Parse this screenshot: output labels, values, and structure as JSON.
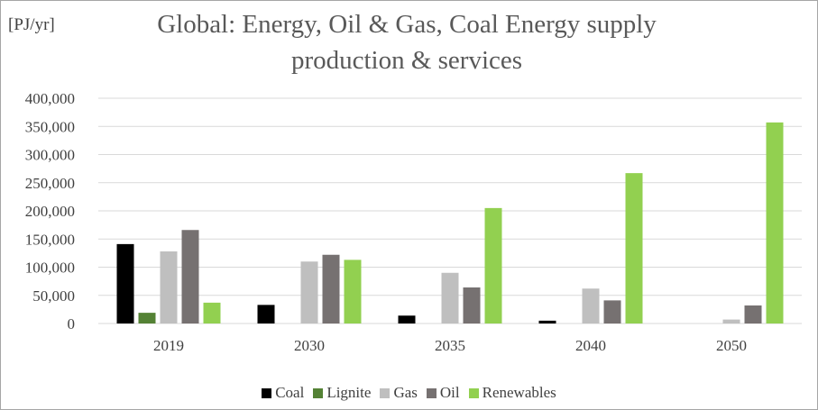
{
  "chart_data": {
    "type": "bar",
    "title": "Global: Energy, Oil & Gas, Coal   Energy supply\nproduction & services",
    "unit_label": "[PJ/yr]",
    "categories": [
      "2019",
      "2030",
      "2035",
      "2040",
      "2050"
    ],
    "ylim": [
      0,
      400000
    ],
    "yticks": [
      "0",
      "50,000",
      "100,000",
      "150,000",
      "200,000",
      "250,000",
      "300,000",
      "350,000",
      "400,000"
    ],
    "ytick_values": [
      0,
      50000,
      100000,
      150000,
      200000,
      250000,
      300000,
      350000,
      400000
    ],
    "grid": true,
    "legend_position": "bottom",
    "series": [
      {
        "name": "Coal",
        "color": "#000000",
        "values": [
          141000,
          33000,
          14000,
          5000,
          0
        ]
      },
      {
        "name": "Lignite",
        "color": "#548235",
        "values": [
          19000,
          0,
          0,
          0,
          0
        ]
      },
      {
        "name": "Gas",
        "color": "#bfbfbf",
        "values": [
          128000,
          110000,
          90000,
          62000,
          7000
        ]
      },
      {
        "name": "Oil",
        "color": "#767171",
        "values": [
          166000,
          122000,
          64000,
          41000,
          32000
        ]
      },
      {
        "name": "Renewables",
        "color": "#92d050",
        "values": [
          37000,
          113000,
          205000,
          267000,
          357000
        ]
      }
    ]
  }
}
